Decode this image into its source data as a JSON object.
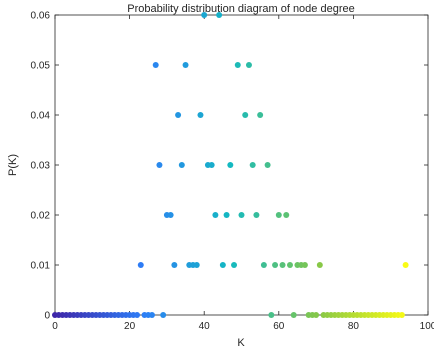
{
  "chart_data": {
    "type": "scatter",
    "title": "Probability distribution diagram of node degree",
    "xlabel": "K",
    "ylabel": "P(K)",
    "xlim": [
      0,
      100
    ],
    "ylim": [
      0,
      0.06
    ],
    "xticks": [
      "0",
      "20",
      "40",
      "60",
      "80",
      "100"
    ],
    "yticks": [
      "0",
      "0.01",
      "0.02",
      "0.03",
      "0.04",
      "0.05",
      "0.06"
    ],
    "grid": false,
    "colormap": [
      "#3e26a8",
      "#2e7ef7",
      "#13b9c1",
      "#86c748",
      "#f9fb15"
    ],
    "points": [
      {
        "x": 40,
        "y": 0.06
      },
      {
        "x": 44,
        "y": 0.06
      },
      {
        "x": 27,
        "y": 0.05
      },
      {
        "x": 35,
        "y": 0.05
      },
      {
        "x": 49,
        "y": 0.05
      },
      {
        "x": 52,
        "y": 0.05
      },
      {
        "x": 33,
        "y": 0.04
      },
      {
        "x": 39,
        "y": 0.04
      },
      {
        "x": 51,
        "y": 0.04
      },
      {
        "x": 55,
        "y": 0.04
      },
      {
        "x": 28,
        "y": 0.03
      },
      {
        "x": 34,
        "y": 0.03
      },
      {
        "x": 41,
        "y": 0.03
      },
      {
        "x": 42,
        "y": 0.03
      },
      {
        "x": 47,
        "y": 0.03
      },
      {
        "x": 53,
        "y": 0.03
      },
      {
        "x": 57,
        "y": 0.03
      },
      {
        "x": 30,
        "y": 0.02
      },
      {
        "x": 31,
        "y": 0.02
      },
      {
        "x": 43,
        "y": 0.02
      },
      {
        "x": 46,
        "y": 0.02
      },
      {
        "x": 50,
        "y": 0.02
      },
      {
        "x": 54,
        "y": 0.02
      },
      {
        "x": 60,
        "y": 0.02
      },
      {
        "x": 62,
        "y": 0.02
      },
      {
        "x": 23,
        "y": 0.01
      },
      {
        "x": 32,
        "y": 0.01
      },
      {
        "x": 36,
        "y": 0.01
      },
      {
        "x": 37,
        "y": 0.01
      },
      {
        "x": 38,
        "y": 0.01
      },
      {
        "x": 45,
        "y": 0.01
      },
      {
        "x": 48,
        "y": 0.01
      },
      {
        "x": 56,
        "y": 0.01
      },
      {
        "x": 59,
        "y": 0.01
      },
      {
        "x": 61,
        "y": 0.01
      },
      {
        "x": 63,
        "y": 0.01
      },
      {
        "x": 65,
        "y": 0.01
      },
      {
        "x": 66,
        "y": 0.01
      },
      {
        "x": 67,
        "y": 0.01
      },
      {
        "x": 71,
        "y": 0.01
      },
      {
        "x": 94,
        "y": 0.01
      },
      {
        "x": 0,
        "y": 0
      },
      {
        "x": 1,
        "y": 0
      },
      {
        "x": 2,
        "y": 0
      },
      {
        "x": 3,
        "y": 0
      },
      {
        "x": 4,
        "y": 0
      },
      {
        "x": 5,
        "y": 0
      },
      {
        "x": 6,
        "y": 0
      },
      {
        "x": 7,
        "y": 0
      },
      {
        "x": 8,
        "y": 0
      },
      {
        "x": 9,
        "y": 0
      },
      {
        "x": 10,
        "y": 0
      },
      {
        "x": 11,
        "y": 0
      },
      {
        "x": 12,
        "y": 0
      },
      {
        "x": 13,
        "y": 0
      },
      {
        "x": 14,
        "y": 0
      },
      {
        "x": 15,
        "y": 0
      },
      {
        "x": 16,
        "y": 0
      },
      {
        "x": 17,
        "y": 0
      },
      {
        "x": 18,
        "y": 0
      },
      {
        "x": 19,
        "y": 0
      },
      {
        "x": 20,
        "y": 0
      },
      {
        "x": 21,
        "y": 0
      },
      {
        "x": 22,
        "y": 0
      },
      {
        "x": 24,
        "y": 0
      },
      {
        "x": 25,
        "y": 0
      },
      {
        "x": 26,
        "y": 0
      },
      {
        "x": 29,
        "y": 0
      },
      {
        "x": 58,
        "y": 0
      },
      {
        "x": 64,
        "y": 0
      },
      {
        "x": 68,
        "y": 0
      },
      {
        "x": 69,
        "y": 0
      },
      {
        "x": 70,
        "y": 0
      },
      {
        "x": 72,
        "y": 0
      },
      {
        "x": 73,
        "y": 0
      },
      {
        "x": 74,
        "y": 0
      },
      {
        "x": 75,
        "y": 0
      },
      {
        "x": 76,
        "y": 0
      },
      {
        "x": 77,
        "y": 0
      },
      {
        "x": 78,
        "y": 0
      },
      {
        "x": 79,
        "y": 0
      },
      {
        "x": 80,
        "y": 0
      },
      {
        "x": 81,
        "y": 0
      },
      {
        "x": 82,
        "y": 0
      },
      {
        "x": 83,
        "y": 0
      },
      {
        "x": 84,
        "y": 0
      },
      {
        "x": 85,
        "y": 0
      },
      {
        "x": 86,
        "y": 0
      },
      {
        "x": 87,
        "y": 0
      },
      {
        "x": 88,
        "y": 0
      },
      {
        "x": 89,
        "y": 0
      },
      {
        "x": 90,
        "y": 0
      },
      {
        "x": 91,
        "y": 0
      },
      {
        "x": 92,
        "y": 0
      },
      {
        "x": 93,
        "y": 0
      }
    ]
  }
}
